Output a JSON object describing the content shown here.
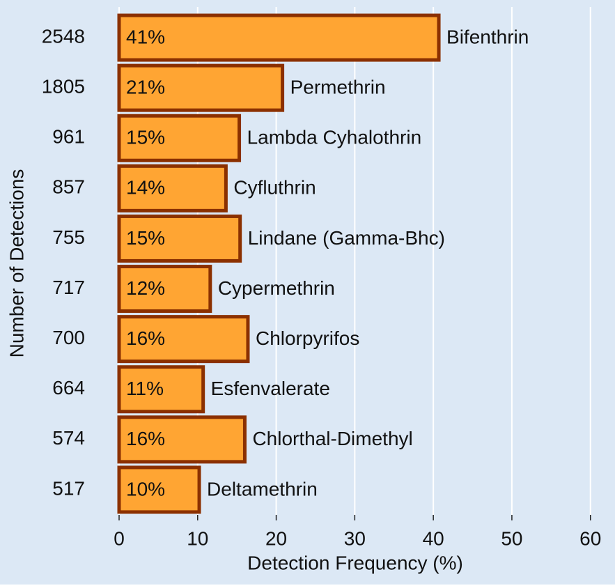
{
  "chart_data": {
    "type": "bar",
    "orientation": "horizontal",
    "xlabel": "Detection Frequency (%)",
    "ylabel": "Number of Detections",
    "categories": [
      "2548",
      "1805",
      "961",
      "857",
      "755",
      "717",
      "700",
      "664",
      "574",
      "517"
    ],
    "labels": [
      "Bifenthrin",
      "Permethrin",
      "Lambda Cyhalothrin",
      "Cyfluthrin",
      "Lindane (Gamma-Bhc)",
      "Cypermethrin",
      "Chlorpyrifos",
      "Esfenvalerate",
      "Chlorthal-Dimethyl",
      "Deltamethrin"
    ],
    "values": [
      40.7,
      20.8,
      15.3,
      13.6,
      15.4,
      11.6,
      16.4,
      10.7,
      16.0,
      10.2
    ],
    "value_labels": [
      "41%",
      "21%",
      "15%",
      "14%",
      "15%",
      "12%",
      "16%",
      "11%",
      "16%",
      "10%"
    ],
    "color": "#ffa533",
    "edgecolor": "#8b3000",
    "xlim": [
      0,
      61
    ],
    "xticks": [
      0,
      10,
      20,
      30,
      40,
      50,
      60
    ],
    "grid": true
  }
}
